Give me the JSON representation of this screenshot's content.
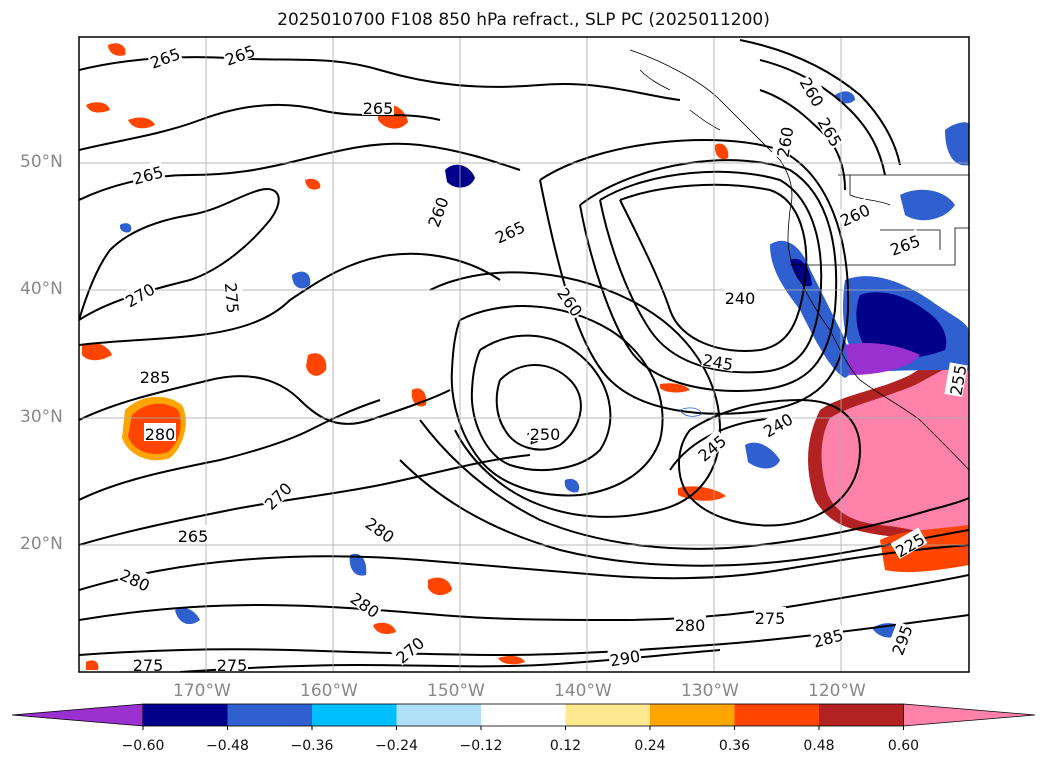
{
  "title": "2025010700 F108 850 hPa refract., SLP PC (2025011200)",
  "lat_labels": [
    "50°N",
    "40°N",
    "30°N",
    "20°N"
  ],
  "lon_labels": [
    "170°W",
    "160°W",
    "150°W",
    "140°W",
    "130°W",
    "120°W"
  ],
  "colorbar": {
    "tick_labels": [
      "−0.60",
      "−0.48",
      "−0.36",
      "−0.24",
      "−0.12",
      "0.12",
      "0.24",
      "0.36",
      "0.48",
      "0.60"
    ],
    "colors": [
      "#9b30d0",
      "#00008b",
      "#3060d0",
      "#00bfff",
      "#b0e0f8",
      "#ffffff",
      "#ffe890",
      "#ffa500",
      "#ff4500",
      "#b22222",
      "#ff82ab"
    ],
    "extend": "both"
  },
  "contour_labels": [
    "265",
    "265",
    "265",
    "265",
    "270",
    "275",
    "260",
    "265",
    "260",
    "240",
    "245",
    "240",
    "245",
    "250",
    "285",
    "280",
    "270",
    "265",
    "280",
    "280",
    "280",
    "270",
    "275",
    "275",
    "290",
    "280",
    "275",
    "285",
    "260",
    "265",
    "260",
    "260",
    "265",
    "250",
    "255",
    "225",
    "295"
  ],
  "colors": {
    "land_red": "#ff82ab",
    "contour": "#000000"
  }
}
